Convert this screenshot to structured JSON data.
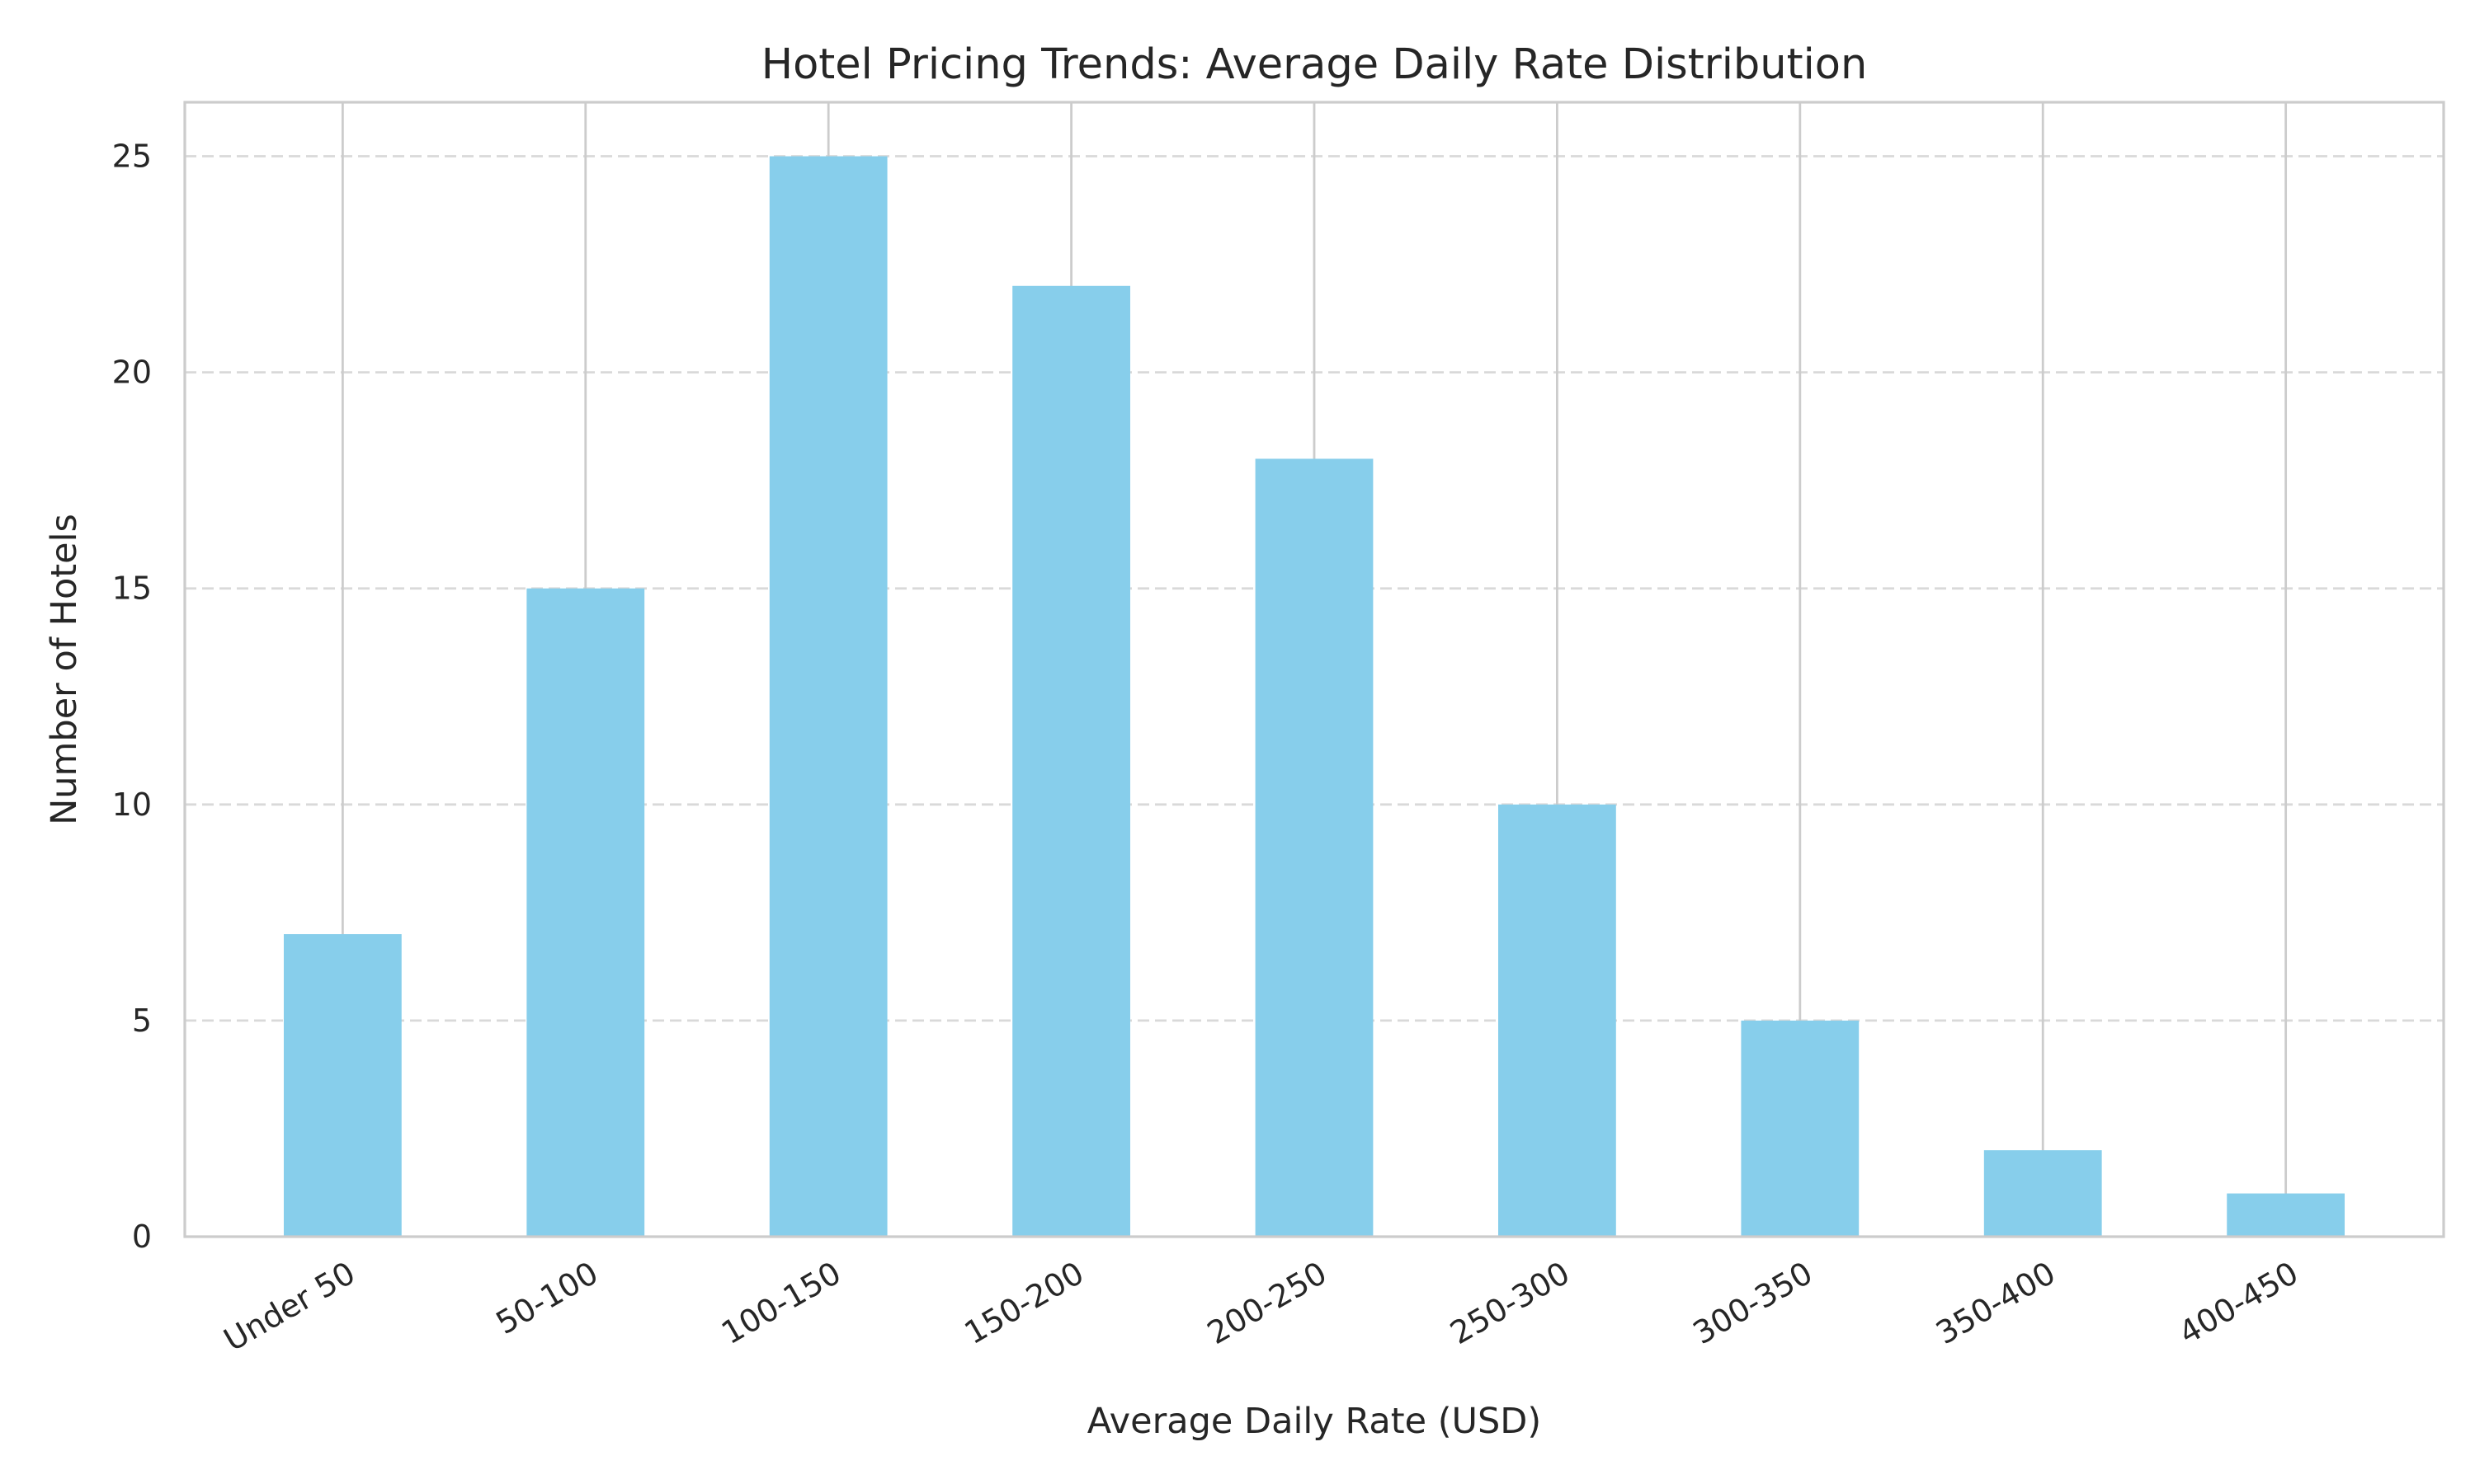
{
  "chart_data": {
    "type": "bar",
    "title": "Hotel Pricing Trends: Average Daily Rate Distribution",
    "xlabel": "Average Daily Rate (USD)",
    "ylabel": "Number of Hotels",
    "categories": [
      "Under 50",
      "50-100",
      "100-150",
      "150-200",
      "200-250",
      "250-300",
      "300-350",
      "350-400",
      "400-450"
    ],
    "values": [
      7,
      15,
      25,
      22,
      18,
      10,
      5,
      2,
      1
    ],
    "ylim": [
      0,
      26.25
    ],
    "yticks": [
      0,
      5,
      10,
      15,
      20,
      25
    ],
    "bar_color": "#87CEEB",
    "grid": {
      "horizontal": "dashed",
      "vertical": "solid"
    },
    "legend": null
  }
}
